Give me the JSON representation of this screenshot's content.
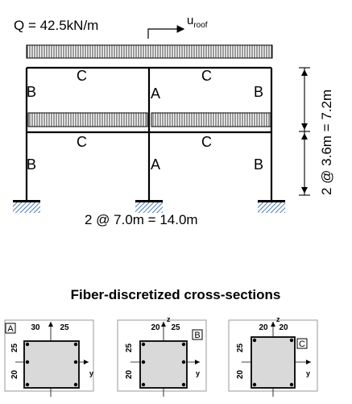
{
  "frame": {
    "load_label": "Q = 42.5kN/m",
    "roof_disp_label_main": "u",
    "roof_disp_label_sub": "roof",
    "span_label": "2 @ 7.0m = 14.0m",
    "height_label": "2 @ 3.6m = 7.2m",
    "member_labels": {
      "upper_left_col": "B",
      "upper_mid_col": "A",
      "upper_right_col": "B",
      "upper_left_beam": "C",
      "upper_right_beam": "C",
      "lower_left_col": "B",
      "lower_mid_col": "A",
      "lower_right_col": "B",
      "lower_left_beam": "C",
      "lower_right_beam": "C"
    }
  },
  "sections": {
    "title": "Fiber-discretized cross-sections",
    "axis_z": "z",
    "axis_y": "y",
    "items": [
      {
        "tag": "A",
        "dim_left": "30",
        "dim_right": "25",
        "dim_v_top": "25",
        "dim_v_bot": "20"
      },
      {
        "tag": "B",
        "dim_left": "20",
        "dim_right": "25",
        "dim_v_top": "25",
        "dim_v_bot": "20"
      },
      {
        "tag": "C",
        "dim_left": "20",
        "dim_right": "20",
        "dim_v_top": "25",
        "dim_v_bot": "20"
      }
    ]
  },
  "colors": {
    "line": "#000000",
    "section_fill": "#d9d9d9",
    "ground_hatch": "#1f5aa6"
  }
}
